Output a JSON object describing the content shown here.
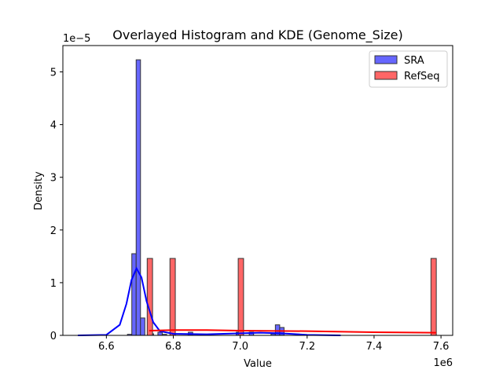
{
  "chart_data": {
    "type": "bar",
    "title": "Overlayed Histogram and KDE (Genome_Size)",
    "xlabel": "Value",
    "ylabel": "Density",
    "x_offset_label": "1e6",
    "y_offset_label": "1e−5",
    "xlim": [
      6.47,
      7.635
    ],
    "ylim": [
      0,
      5.5
    ],
    "xticks": [
      "6.6",
      "6.8",
      "7.0",
      "7.2",
      "7.4",
      "7.6"
    ],
    "yticks": [
      "0",
      "1",
      "2",
      "3",
      "4",
      "5"
    ],
    "grid": false,
    "legend_position": "top-right",
    "series": [
      {
        "name": "SRA",
        "color": "#0000ff",
        "bin_width": 0.013,
        "bins": [
          {
            "x": 6.663,
            "y": 0.02
          },
          {
            "x": 6.676,
            "y": 1.55
          },
          {
            "x": 6.689,
            "y": 5.23
          },
          {
            "x": 6.702,
            "y": 0.33
          },
          {
            "x": 6.728,
            "y": 0.03
          },
          {
            "x": 6.754,
            "y": 0.06
          },
          {
            "x": 6.767,
            "y": 0.02
          },
          {
            "x": 6.845,
            "y": 0.06
          },
          {
            "x": 6.988,
            "y": 0.06
          },
          {
            "x": 7.027,
            "y": 0.06
          },
          {
            "x": 7.092,
            "y": 0.03
          },
          {
            "x": 7.105,
            "y": 0.2
          },
          {
            "x": 7.118,
            "y": 0.15
          }
        ],
        "kde": [
          [
            6.515,
            0
          ],
          [
            6.6,
            0.01
          ],
          [
            6.64,
            0.2
          ],
          [
            6.66,
            0.6
          ],
          [
            6.675,
            1.05
          ],
          [
            6.69,
            1.27
          ],
          [
            6.705,
            1.1
          ],
          [
            6.72,
            0.65
          ],
          [
            6.74,
            0.25
          ],
          [
            6.76,
            0.08
          ],
          [
            6.8,
            0.03
          ],
          [
            6.9,
            0.02
          ],
          [
            7.0,
            0.04
          ],
          [
            7.06,
            0.05
          ],
          [
            7.12,
            0.04
          ],
          [
            7.2,
            0.01
          ],
          [
            7.3,
            0
          ]
        ]
      },
      {
        "name": "RefSeq",
        "color": "#ff0000",
        "bin_width": 0.016,
        "bins": [
          {
            "x": 6.722,
            "y": 1.46
          },
          {
            "x": 6.79,
            "y": 1.46
          },
          {
            "x": 6.994,
            "y": 1.46
          },
          {
            "x": 7.57,
            "y": 1.46
          }
        ],
        "kde": [
          [
            6.728,
            0.09
          ],
          [
            6.8,
            0.1
          ],
          [
            6.9,
            0.1
          ],
          [
            7.0,
            0.09
          ],
          [
            7.2,
            0.08
          ],
          [
            7.4,
            0.06
          ],
          [
            7.586,
            0.05
          ]
        ]
      }
    ]
  }
}
